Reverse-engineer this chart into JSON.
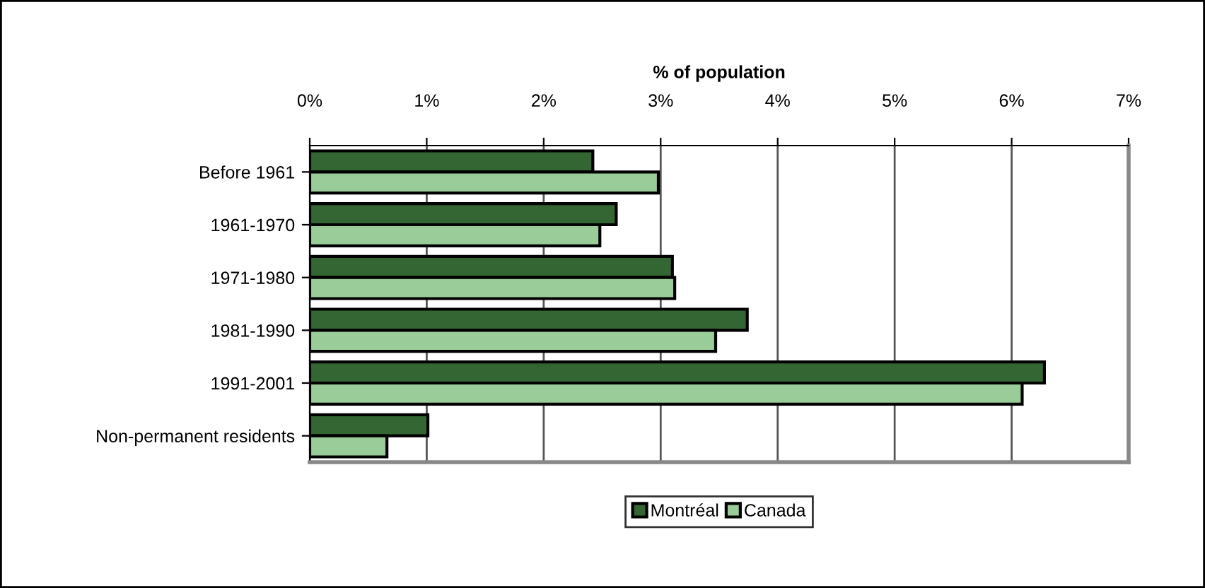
{
  "chart_data": {
    "type": "bar",
    "orientation": "horizontal",
    "xlabel": "% of population",
    "categories": [
      "Before 1961",
      "1961-1970",
      "1971-1980",
      "1981-1990",
      "1991-2001",
      "Non-permanent residents"
    ],
    "series": [
      {
        "name": "Montréal",
        "color": "#336633",
        "values": [
          2.42,
          2.62,
          3.1,
          3.74,
          6.28,
          1.01
        ]
      },
      {
        "name": "Canada",
        "color": "#99cc99",
        "values": [
          2.98,
          2.48,
          3.12,
          3.47,
          6.09,
          0.66
        ]
      }
    ],
    "xlim": [
      0,
      7
    ],
    "xticks": [
      {
        "value": 0,
        "label": "0%"
      },
      {
        "value": 1,
        "label": "1%"
      },
      {
        "value": 2,
        "label": "2%"
      },
      {
        "value": 3,
        "label": "3%"
      },
      {
        "value": 4,
        "label": "4%"
      },
      {
        "value": 5,
        "label": "5%"
      },
      {
        "value": 6,
        "label": "6%"
      },
      {
        "value": 7,
        "label": "7%"
      }
    ],
    "grid": "x",
    "legend": "bottom"
  }
}
